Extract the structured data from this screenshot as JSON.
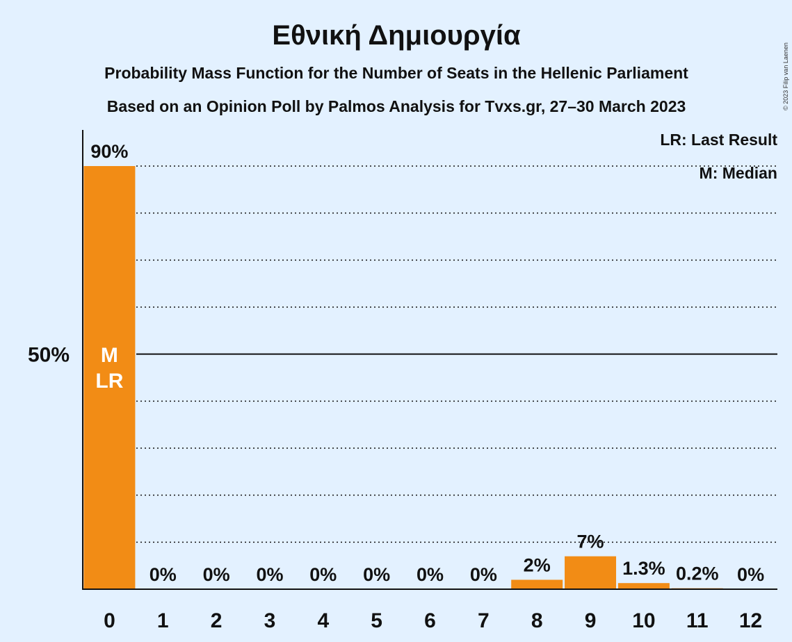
{
  "chart_data": {
    "type": "bar",
    "title": "Εθνική Δημιουργία",
    "subtitle_1": "Probability Mass Function for the Number of Seats in the Hellenic Parliament",
    "subtitle_2": "Based on an Opinion Poll by Palmos Analysis for Tvxs.gr, 27–30 March 2023",
    "copyright": "© 2023 Filip van Laenen",
    "categories": [
      "0",
      "1",
      "2",
      "3",
      "4",
      "5",
      "6",
      "7",
      "8",
      "9",
      "10",
      "11",
      "12"
    ],
    "values": [
      90,
      0,
      0,
      0,
      0,
      0,
      0,
      0,
      2,
      7,
      1.3,
      0.2,
      0
    ],
    "value_labels": [
      "90%",
      "0%",
      "0%",
      "0%",
      "0%",
      "0%",
      "0%",
      "0%",
      "2%",
      "7%",
      "1.3%",
      "0.2%",
      "0%"
    ],
    "ylim": [
      0,
      92
    ],
    "y_ticks": [
      {
        "value": 50,
        "label": "50%"
      }
    ],
    "gridlines_dotted": [
      10,
      20,
      30,
      40,
      60,
      70,
      80,
      90
    ],
    "gridline_solid": 50,
    "median_index": 0,
    "last_result_index": 0,
    "markers": {
      "median": "M",
      "last_result": "LR"
    },
    "legend": [
      "LR: Last Result",
      "M: Median"
    ],
    "legend_position": "top-right",
    "bar_color": "#f28c15",
    "background_color": "#e3f1ff"
  }
}
